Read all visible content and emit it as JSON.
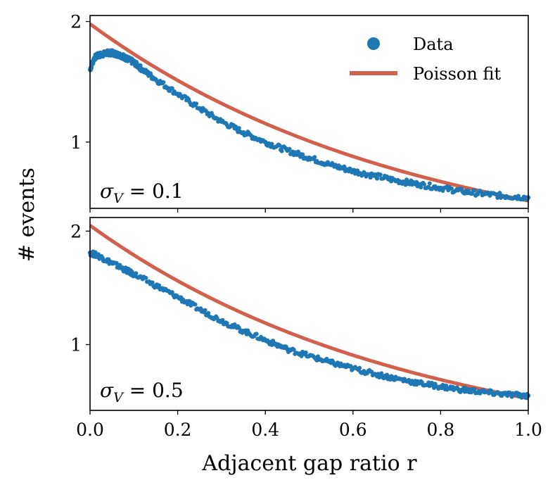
{
  "chart_data": [
    {
      "type": "scatter",
      "panel": "top",
      "annotation": "σ_V = 0.1",
      "x_range": [
        0.0,
        1.0
      ],
      "y_range": [
        0.45,
        2.05
      ],
      "yticks": [
        1,
        2
      ],
      "ytick_labels": [
        "1",
        "2"
      ],
      "show_xtick_labels": false,
      "legend_position": "top-right",
      "series": [
        {
          "name": "Data",
          "kind": "scatter",
          "color": "#1f77b4",
          "x": [
            0.0,
            0.01,
            0.02,
            0.03,
            0.04,
            0.05,
            0.06,
            0.07,
            0.08,
            0.09,
            0.1,
            0.12,
            0.15,
            0.2,
            0.25,
            0.3,
            0.35,
            0.4,
            0.45,
            0.5,
            0.55,
            0.6,
            0.65,
            0.7,
            0.75,
            0.8,
            0.85,
            0.9,
            0.95,
            1.0
          ],
          "y": [
            1.6,
            1.7,
            1.72,
            1.73,
            1.74,
            1.74,
            1.73,
            1.72,
            1.7,
            1.68,
            1.66,
            1.6,
            1.52,
            1.4,
            1.28,
            1.17,
            1.08,
            1.0,
            0.93,
            0.87,
            0.81,
            0.76,
            0.72,
            0.68,
            0.65,
            0.62,
            0.59,
            0.57,
            0.55,
            0.54
          ]
        },
        {
          "name": "Poisson fit",
          "kind": "line",
          "color": "#d1604c",
          "model": "y = a * exp(-k * x)",
          "a": 1.98,
          "k": 1.35
        }
      ]
    },
    {
      "type": "scatter",
      "panel": "bottom",
      "annotation": "σ_V = 0.5",
      "x_range": [
        0.0,
        1.0
      ],
      "y_range": [
        0.42,
        2.12
      ],
      "yticks": [
        1,
        2
      ],
      "ytick_labels": [
        "1",
        "2"
      ],
      "xticks": [
        0.0,
        0.2,
        0.4,
        0.6,
        0.8,
        1.0
      ],
      "xtick_labels": [
        "0.0",
        "0.2",
        "0.4",
        "0.6",
        "0.8",
        "1.0"
      ],
      "show_xtick_labels": true,
      "series": [
        {
          "name": "Data",
          "kind": "scatter",
          "color": "#1f77b4",
          "x": [
            0.0,
            0.02,
            0.05,
            0.08,
            0.1,
            0.15,
            0.2,
            0.25,
            0.3,
            0.35,
            0.4,
            0.45,
            0.5,
            0.55,
            0.6,
            0.65,
            0.7,
            0.75,
            0.8,
            0.85,
            0.9,
            0.95,
            1.0
          ],
          "y": [
            1.81,
            1.78,
            1.72,
            1.66,
            1.62,
            1.52,
            1.42,
            1.31,
            1.21,
            1.12,
            1.04,
            0.96,
            0.9,
            0.84,
            0.79,
            0.74,
            0.7,
            0.66,
            0.63,
            0.6,
            0.58,
            0.56,
            0.55
          ]
        },
        {
          "name": "Poisson fit",
          "kind": "line",
          "color": "#d1604c",
          "model": "y = a * exp(-k * x)",
          "a": 2.05,
          "k": 1.36
        }
      ]
    }
  ],
  "legend": {
    "entries": [
      "Data",
      "Poisson fit"
    ]
  },
  "ylabel": "# events",
  "xlabel": "Adjacent gap ratio r",
  "annotations": {
    "top": {
      "symbol": "σ",
      "sub": "V",
      "rest": " = 0.1"
    },
    "bottom": {
      "symbol": "σ",
      "sub": "V",
      "rest": " = 0.5"
    }
  },
  "colors": {
    "data": "#1f77b4",
    "fit": "#d1604c"
  }
}
